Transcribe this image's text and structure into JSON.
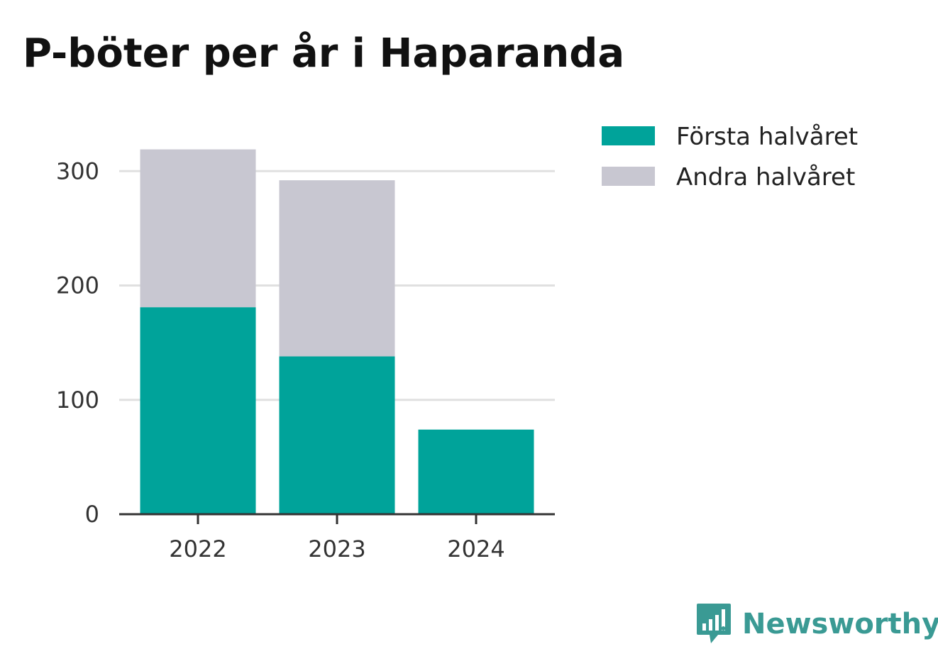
{
  "chart_data": {
    "type": "bar",
    "stacked": true,
    "title": "P-böter per år i Haparanda",
    "xlabel": "",
    "ylabel": "",
    "categories": [
      "2022",
      "2023",
      "2024"
    ],
    "series": [
      {
        "name": "Första halvåret",
        "values": [
          181,
          138,
          74
        ],
        "color": "#00a39a"
      },
      {
        "name": "Andra halvåret",
        "values": [
          138,
          154,
          0
        ],
        "color": "#c8c7d1"
      }
    ],
    "ylim": [
      0,
      320
    ],
    "yticks": [
      0,
      100,
      200,
      300
    ],
    "grid": true,
    "legend_position": "top-right"
  },
  "brand": {
    "name": "Newsworthy",
    "icon": "newsworthy-logo-icon",
    "color": "#3a9a94"
  }
}
